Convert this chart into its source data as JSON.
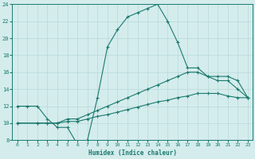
{
  "xlabel": "Humidex (Indice chaleur)",
  "xlim": [
    -0.5,
    23.5
  ],
  "ylim": [
    8,
    24
  ],
  "xticks": [
    0,
    1,
    2,
    3,
    4,
    5,
    6,
    7,
    8,
    9,
    10,
    11,
    12,
    13,
    14,
    15,
    16,
    17,
    18,
    19,
    20,
    21,
    22,
    23
  ],
  "yticks": [
    8,
    10,
    12,
    14,
    16,
    18,
    20,
    22,
    24
  ],
  "bg_color": "#d4ecec",
  "line_color": "#1a7a6e",
  "grid_color": "#b8d8d8",
  "line1_x": [
    0,
    1,
    2,
    3,
    4,
    5,
    6,
    7,
    8,
    9,
    10,
    11,
    12,
    13,
    14,
    15,
    16,
    17,
    18,
    19,
    20,
    21,
    22,
    23
  ],
  "line1_y": [
    12,
    12,
    12,
    10.5,
    9.5,
    9.5,
    7.5,
    8,
    13,
    19,
    21,
    22.5,
    23,
    23.5,
    24,
    22,
    19.5,
    16.5,
    16.5,
    15.5,
    15,
    15,
    14,
    13
  ],
  "line2_x": [
    0,
    2,
    3,
    4,
    5,
    6,
    7,
    8,
    9,
    10,
    11,
    12,
    13,
    14,
    15,
    16,
    17,
    18,
    19,
    20,
    21,
    22,
    23
  ],
  "line2_y": [
    10,
    10,
    10,
    10,
    10.5,
    10.5,
    11,
    11.5,
    12,
    12.5,
    13,
    13.5,
    14,
    14.5,
    15,
    15.5,
    16,
    16,
    15.5,
    15.5,
    15.5,
    15,
    13
  ],
  "line3_x": [
    0,
    2,
    3,
    4,
    5,
    6,
    7,
    8,
    9,
    10,
    11,
    12,
    13,
    14,
    15,
    16,
    17,
    18,
    19,
    20,
    21,
    22,
    23
  ],
  "line3_y": [
    10,
    10,
    10,
    10,
    10.2,
    10.2,
    10.5,
    10.8,
    11,
    11.3,
    11.6,
    11.9,
    12.2,
    12.5,
    12.7,
    13,
    13.2,
    13.5,
    13.5,
    13.5,
    13.2,
    13,
    13
  ]
}
